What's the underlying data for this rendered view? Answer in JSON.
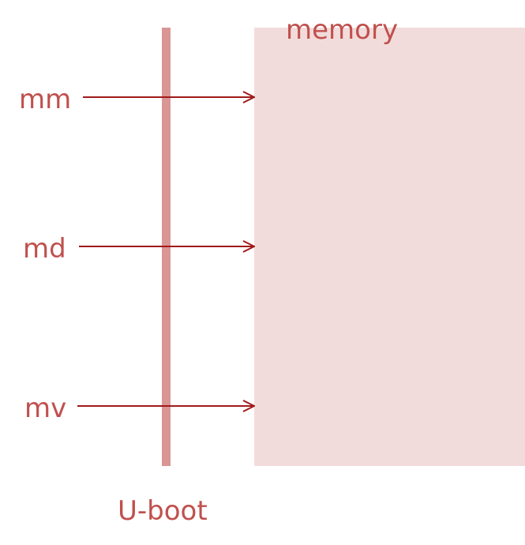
{
  "diagram": {
    "memory_label": "memory",
    "uboot_label": "U-boot",
    "commands": [
      {
        "name": "mm"
      },
      {
        "name": "md"
      },
      {
        "name": "mv"
      }
    ]
  },
  "colors": {
    "text": "#c0504d",
    "arrow": "#a11a1a",
    "uboot_bar": "#d99694",
    "memory_block": "#f2dcdb"
  }
}
